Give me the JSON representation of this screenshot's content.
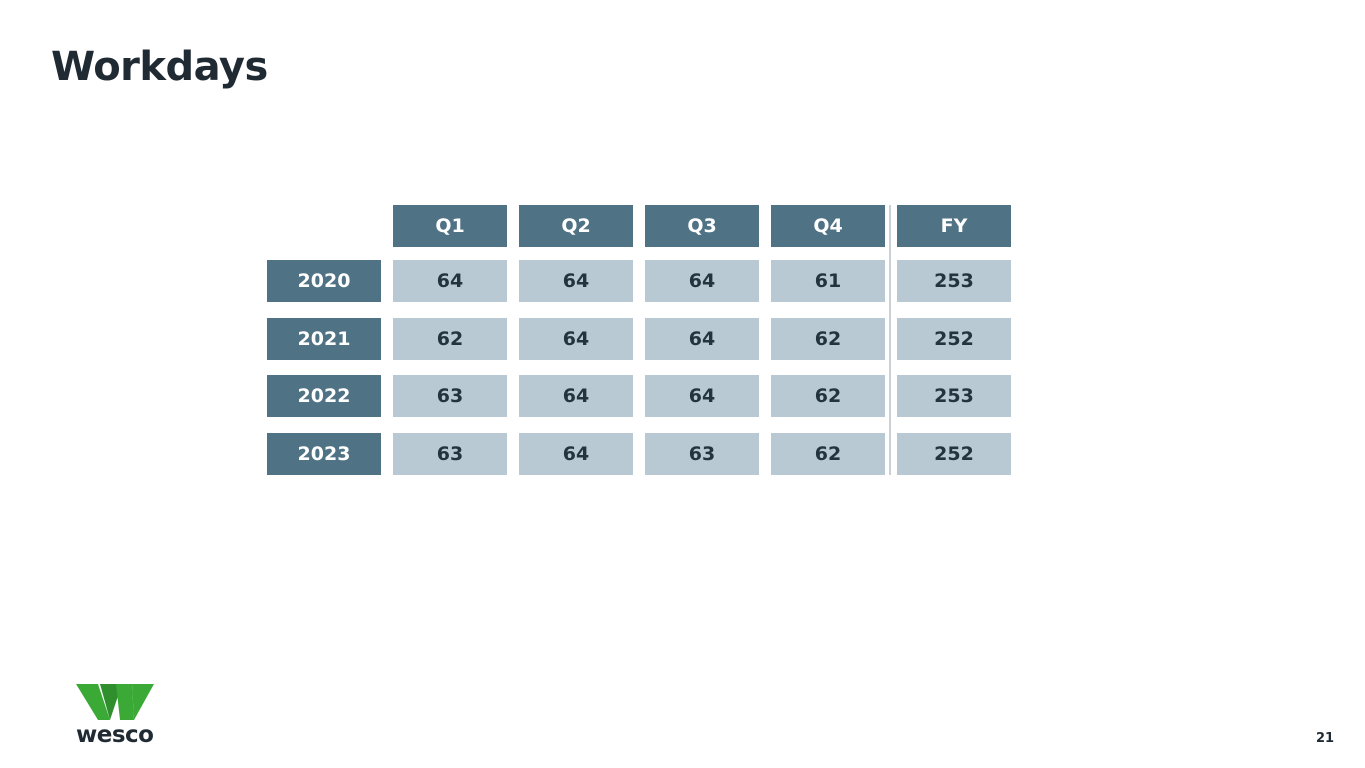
{
  "title": "Workdays",
  "table": {
    "header": [
      "Q1",
      "Q2",
      "Q3",
      "Q4",
      "FY"
    ],
    "rows": [
      {
        "label": "2020",
        "values": [
          64,
          64,
          64,
          61,
          253
        ]
      },
      {
        "label": "2021",
        "values": [
          62,
          64,
          64,
          62,
          252
        ]
      },
      {
        "label": "2022",
        "values": [
          63,
          64,
          64,
          62,
          253
        ]
      },
      {
        "label": "2023",
        "values": [
          63,
          64,
          63,
          62,
          252
        ]
      }
    ]
  },
  "logo": "wesco",
  "page_number": "21"
}
